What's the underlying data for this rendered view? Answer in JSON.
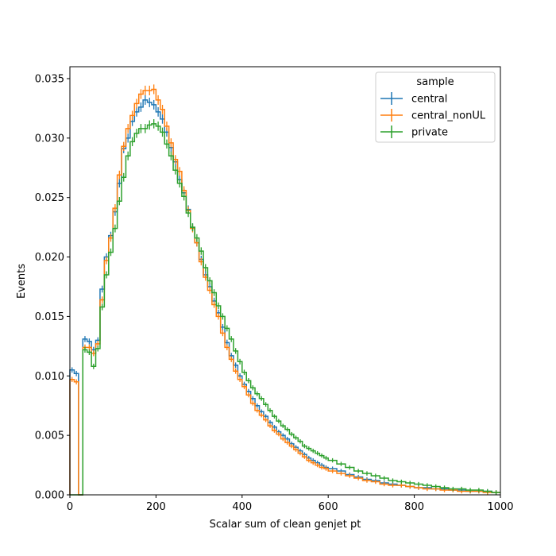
{
  "chart_data": {
    "type": "histogram-step",
    "title": "",
    "xlabel": "Scalar sum of clean genjet pt",
    "ylabel": "Events",
    "xlim": [
      0,
      1000
    ],
    "ylim": [
      0,
      0.036
    ],
    "x_ticks": [
      0,
      200,
      400,
      600,
      800,
      1000
    ],
    "x_tick_labels": [
      "0",
      "200",
      "400",
      "600",
      "800",
      "1000"
    ],
    "y_ticks": [
      0,
      0.005,
      0.01,
      0.015,
      0.02,
      0.025,
      0.03,
      0.035
    ],
    "y_tick_labels": [
      "0.000",
      "0.005",
      "0.010",
      "0.015",
      "0.020",
      "0.025",
      "0.030",
      "0.035"
    ],
    "grid": false,
    "legend": {
      "title": "sample",
      "position": "top-right"
    },
    "series": [
      {
        "name": "central",
        "color": "#1f77b4",
        "errorbars": true,
        "points": [
          [
            0,
            0.0105
          ],
          [
            10,
            0.0102
          ],
          [
            20,
            0.0
          ],
          [
            30,
            0.0131
          ],
          [
            40,
            0.0129
          ],
          [
            50,
            0.0122
          ],
          [
            60,
            0.013
          ],
          [
            70,
            0.0173
          ],
          [
            80,
            0.02
          ],
          [
            90,
            0.0218
          ],
          [
            100,
            0.0238
          ],
          [
            110,
            0.0262
          ],
          [
            120,
            0.0291
          ],
          [
            130,
            0.03
          ],
          [
            140,
            0.0314
          ],
          [
            150,
            0.0322
          ],
          [
            160,
            0.0326
          ],
          [
            170,
            0.0332
          ],
          [
            180,
            0.033
          ],
          [
            190,
            0.0328
          ],
          [
            200,
            0.0322
          ],
          [
            210,
            0.0316
          ],
          [
            220,
            0.0305
          ],
          [
            230,
            0.0292
          ],
          [
            240,
            0.028
          ],
          [
            250,
            0.0265
          ],
          [
            260,
            0.0254
          ],
          [
            270,
            0.024
          ],
          [
            280,
            0.0225
          ],
          [
            290,
            0.0212
          ],
          [
            300,
            0.0198
          ],
          [
            310,
            0.0185
          ],
          [
            320,
            0.0175
          ],
          [
            330,
            0.0163
          ],
          [
            340,
            0.0153
          ],
          [
            350,
            0.0141
          ],
          [
            360,
            0.0128
          ],
          [
            370,
            0.0117
          ],
          [
            380,
            0.0109
          ],
          [
            390,
            0.01
          ],
          [
            400,
            0.0093
          ],
          [
            410,
            0.0087
          ],
          [
            420,
            0.0081
          ],
          [
            430,
            0.0075
          ],
          [
            440,
            0.007
          ],
          [
            450,
            0.0066
          ],
          [
            460,
            0.0061
          ],
          [
            470,
            0.0057
          ],
          [
            480,
            0.0053
          ],
          [
            490,
            0.005
          ],
          [
            500,
            0.0047
          ],
          [
            510,
            0.0043
          ],
          [
            520,
            0.004
          ],
          [
            530,
            0.0037
          ],
          [
            540,
            0.0034
          ],
          [
            550,
            0.0031
          ],
          [
            560,
            0.0029
          ],
          [
            570,
            0.0027
          ],
          [
            580,
            0.0025
          ],
          [
            590,
            0.0023
          ],
          [
            600,
            0.0022
          ],
          [
            620,
            0.002
          ],
          [
            640,
            0.0017
          ],
          [
            660,
            0.0015
          ],
          [
            680,
            0.0013
          ],
          [
            700,
            0.0012
          ],
          [
            720,
            0.001
          ],
          [
            740,
            0.0009
          ],
          [
            760,
            0.0008
          ],
          [
            780,
            0.0007
          ],
          [
            800,
            0.0006
          ],
          [
            820,
            0.0006
          ],
          [
            840,
            0.0005
          ],
          [
            860,
            0.0005
          ],
          [
            880,
            0.0004
          ],
          [
            900,
            0.0004
          ],
          [
            920,
            0.0003
          ],
          [
            940,
            0.0003
          ],
          [
            960,
            0.0003
          ],
          [
            980,
            0.0002
          ]
        ]
      },
      {
        "name": "central_nonUL",
        "color": "#ff7f0e",
        "errorbars": true,
        "points": [
          [
            0,
            0.0097
          ],
          [
            10,
            0.0095
          ],
          [
            20,
            0.0
          ],
          [
            30,
            0.0124
          ],
          [
            40,
            0.0124
          ],
          [
            50,
            0.0119
          ],
          [
            60,
            0.0127
          ],
          [
            70,
            0.0164
          ],
          [
            80,
            0.0197
          ],
          [
            90,
            0.0216
          ],
          [
            100,
            0.0241
          ],
          [
            110,
            0.0269
          ],
          [
            120,
            0.0293
          ],
          [
            130,
            0.0308
          ],
          [
            140,
            0.0319
          ],
          [
            150,
            0.0329
          ],
          [
            160,
            0.0337
          ],
          [
            170,
            0.034
          ],
          [
            180,
            0.034
          ],
          [
            190,
            0.0341
          ],
          [
            200,
            0.0332
          ],
          [
            210,
            0.0324
          ],
          [
            220,
            0.031
          ],
          [
            230,
            0.0296
          ],
          [
            240,
            0.0282
          ],
          [
            250,
            0.0272
          ],
          [
            260,
            0.0256
          ],
          [
            270,
            0.0239
          ],
          [
            280,
            0.0224
          ],
          [
            290,
            0.0212
          ],
          [
            300,
            0.0196
          ],
          [
            310,
            0.0183
          ],
          [
            320,
            0.0172
          ],
          [
            330,
            0.016
          ],
          [
            340,
            0.015
          ],
          [
            350,
            0.0136
          ],
          [
            360,
            0.0124
          ],
          [
            370,
            0.0114
          ],
          [
            380,
            0.0104
          ],
          [
            390,
            0.0097
          ],
          [
            400,
            0.0091
          ],
          [
            410,
            0.0084
          ],
          [
            420,
            0.0077
          ],
          [
            430,
            0.0071
          ],
          [
            440,
            0.0067
          ],
          [
            450,
            0.0063
          ],
          [
            460,
            0.0058
          ],
          [
            470,
            0.0054
          ],
          [
            480,
            0.0051
          ],
          [
            490,
            0.0047
          ],
          [
            500,
            0.0044
          ],
          [
            510,
            0.0041
          ],
          [
            520,
            0.0038
          ],
          [
            530,
            0.0035
          ],
          [
            540,
            0.0032
          ],
          [
            550,
            0.0029
          ],
          [
            560,
            0.0027
          ],
          [
            570,
            0.0025
          ],
          [
            580,
            0.0023
          ],
          [
            590,
            0.0022
          ],
          [
            600,
            0.002
          ],
          [
            620,
            0.0018
          ],
          [
            640,
            0.0016
          ],
          [
            660,
            0.0014
          ],
          [
            680,
            0.0012
          ],
          [
            700,
            0.0011
          ],
          [
            720,
            0.0009
          ],
          [
            740,
            0.0008
          ],
          [
            760,
            0.0008
          ],
          [
            780,
            0.0007
          ],
          [
            800,
            0.0006
          ],
          [
            820,
            0.0005
          ],
          [
            840,
            0.0005
          ],
          [
            860,
            0.0004
          ],
          [
            880,
            0.0004
          ],
          [
            900,
            0.0003
          ],
          [
            920,
            0.0003
          ],
          [
            940,
            0.0003
          ],
          [
            960,
            0.0002
          ],
          [
            980,
            0.0002
          ]
        ]
      },
      {
        "name": "private",
        "color": "#2ca02c",
        "errorbars": true,
        "points": [
          [
            0,
            0.0
          ],
          [
            10,
            0.0
          ],
          [
            20,
            0.0
          ],
          [
            30,
            0.0122
          ],
          [
            40,
            0.012
          ],
          [
            50,
            0.0108
          ],
          [
            60,
            0.0123
          ],
          [
            70,
            0.0158
          ],
          [
            80,
            0.0185
          ],
          [
            90,
            0.0204
          ],
          [
            100,
            0.0224
          ],
          [
            110,
            0.0247
          ],
          [
            120,
            0.0267
          ],
          [
            130,
            0.0285
          ],
          [
            140,
            0.0297
          ],
          [
            150,
            0.0304
          ],
          [
            160,
            0.0308
          ],
          [
            170,
            0.0308
          ],
          [
            180,
            0.0311
          ],
          [
            190,
            0.0312
          ],
          [
            200,
            0.031
          ],
          [
            210,
            0.0305
          ],
          [
            220,
            0.0295
          ],
          [
            230,
            0.0285
          ],
          [
            240,
            0.0273
          ],
          [
            250,
            0.0262
          ],
          [
            260,
            0.0251
          ],
          [
            270,
            0.0237
          ],
          [
            280,
            0.0225
          ],
          [
            290,
            0.0216
          ],
          [
            300,
            0.0205
          ],
          [
            310,
            0.0191
          ],
          [
            320,
            0.018
          ],
          [
            330,
            0.017
          ],
          [
            340,
            0.0159
          ],
          [
            350,
            0.015
          ],
          [
            360,
            0.014
          ],
          [
            370,
            0.0131
          ],
          [
            380,
            0.0121
          ],
          [
            390,
            0.0112
          ],
          [
            400,
            0.0103
          ],
          [
            410,
            0.0096
          ],
          [
            420,
            0.009
          ],
          [
            430,
            0.0085
          ],
          [
            440,
            0.0081
          ],
          [
            450,
            0.0076
          ],
          [
            460,
            0.0071
          ],
          [
            470,
            0.0066
          ],
          [
            480,
            0.0062
          ],
          [
            490,
            0.0058
          ],
          [
            500,
            0.0055
          ],
          [
            510,
            0.0051
          ],
          [
            520,
            0.0048
          ],
          [
            530,
            0.0045
          ],
          [
            540,
            0.0041
          ],
          [
            550,
            0.0039
          ],
          [
            560,
            0.0037
          ],
          [
            570,
            0.0035
          ],
          [
            580,
            0.0033
          ],
          [
            590,
            0.0031
          ],
          [
            600,
            0.0029
          ],
          [
            620,
            0.0026
          ],
          [
            640,
            0.0023
          ],
          [
            660,
            0.002
          ],
          [
            680,
            0.0018
          ],
          [
            700,
            0.0016
          ],
          [
            720,
            0.0014
          ],
          [
            740,
            0.0012
          ],
          [
            760,
            0.0011
          ],
          [
            780,
            0.001
          ],
          [
            800,
            0.0009
          ],
          [
            820,
            0.0008
          ],
          [
            840,
            0.0007
          ],
          [
            860,
            0.0006
          ],
          [
            880,
            0.0005
          ],
          [
            900,
            0.0005
          ],
          [
            920,
            0.0004
          ],
          [
            940,
            0.0004
          ],
          [
            960,
            0.0003
          ],
          [
            980,
            0.0002
          ]
        ]
      }
    ]
  }
}
